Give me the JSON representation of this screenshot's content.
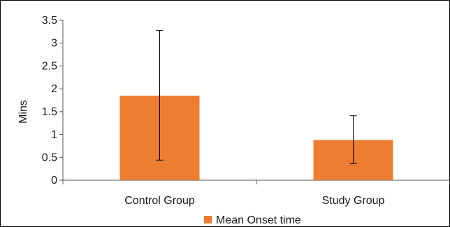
{
  "chart_data": {
    "type": "bar",
    "categories": [
      "Control Group",
      "Study Group"
    ],
    "series": [
      {
        "name": "Mean Onset time",
        "values": [
          1.85,
          0.88
        ],
        "error_low": [
          0.44,
          0.36
        ],
        "error_high": [
          3.28,
          1.41
        ],
        "color": "#ED7D31"
      }
    ],
    "ylabel": "Mins",
    "xlabel": "",
    "ylim": [
      0,
      3.5
    ],
    "yticks": [
      0,
      0.5,
      1,
      1.5,
      2,
      2.5,
      3,
      3.5
    ],
    "ytick_labels": [
      "0",
      "0.5",
      "1",
      "1.5",
      "2",
      "2.5",
      "3",
      "3.5"
    ],
    "grid": false,
    "legend": "bottom"
  }
}
